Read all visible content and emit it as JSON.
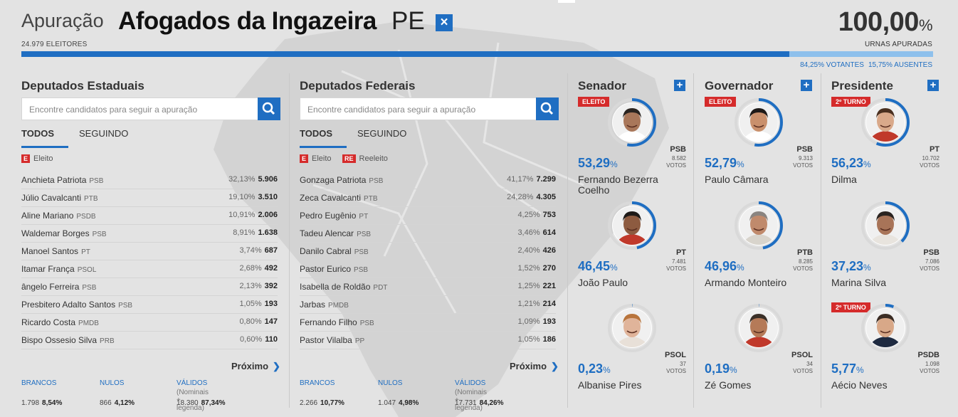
{
  "header": {
    "label": "Apuração",
    "city": "Afogados da Ingazeira",
    "state": "PE",
    "close_icon": "×",
    "eleitores": "24.979 ELEITORES",
    "pct_apurada": "100,00",
    "pct_symbol": "%",
    "urnas_label": "URNAS APURADAS",
    "progress_fraction": 0.8425,
    "votantes": "84,25% VOTANTES",
    "ausentes": "15,75% AUSENTES"
  },
  "colors": {
    "accent": "#1f6ec2",
    "eleito": "#d52b2b",
    "bar_light": "#8ec0ec"
  },
  "estaduais": {
    "title": "Deputados Estaduais",
    "search_placeholder": "Encontre candidatos para seguir a apuração",
    "tab_todos": "TODOS",
    "tab_seguindo": "SEGUINDO",
    "legend_eleito_badge": "E",
    "legend_eleito": "Eleito",
    "rows": [
      {
        "name": "Anchieta Patriota",
        "party": "PSB",
        "pct": "32,13%",
        "votes": "5.906"
      },
      {
        "name": "Júlio Cavalcanti",
        "party": "PTB",
        "pct": "19,10%",
        "votes": "3.510"
      },
      {
        "name": "Aline Mariano",
        "party": "PSDB",
        "pct": "10,91%",
        "votes": "2.006"
      },
      {
        "name": "Waldemar Borges",
        "party": "PSB",
        "pct": "8,91%",
        "votes": "1.638"
      },
      {
        "name": "Manoel Santos",
        "party": "PT",
        "pct": "3,74%",
        "votes": "687"
      },
      {
        "name": "Itamar França",
        "party": "PSOL",
        "pct": "2,68%",
        "votes": "492"
      },
      {
        "name": "ângelo Ferreira",
        "party": "PSB",
        "pct": "2,13%",
        "votes": "392"
      },
      {
        "name": "Presbitero Adalto Santos",
        "party": "PSB",
        "pct": "1,05%",
        "votes": "193"
      },
      {
        "name": "Ricardo Costa",
        "party": "PMDB",
        "pct": "0,80%",
        "votes": "147"
      },
      {
        "name": "Bispo Ossesio Silva",
        "party": "PRB",
        "pct": "0,60%",
        "votes": "110"
      }
    ],
    "proximo": "Próximo",
    "brancos_label": "BRANCOS",
    "brancos_n": "1.798",
    "brancos_pct": "8,54%",
    "nulos_label": "NULOS",
    "nulos_n": "866",
    "nulos_pct": "4,12%",
    "validos_label": "VÁLIDOS",
    "validos_sub": "(Nominais + legenda)",
    "validos_n": "18.380",
    "validos_pct": "87,34%"
  },
  "federais": {
    "title": "Deputados Federais",
    "search_placeholder": "Encontre candidatos para seguir a apuração",
    "tab_todos": "TODOS",
    "tab_seguindo": "SEGUINDO",
    "legend_eleito_badge": "E",
    "legend_eleito": "Eleito",
    "legend_reeleito_badge": "RE",
    "legend_reeleito": "Reeleito",
    "rows": [
      {
        "name": "Gonzaga Patriota",
        "party": "PSB",
        "pct": "41,17%",
        "votes": "7.299"
      },
      {
        "name": "Zeca Cavalcanti",
        "party": "PTB",
        "pct": "24,28%",
        "votes": "4.305"
      },
      {
        "name": "Pedro Eugênio",
        "party": "PT",
        "pct": "4,25%",
        "votes": "753"
      },
      {
        "name": "Tadeu Alencar",
        "party": "PSB",
        "pct": "3,46%",
        "votes": "614"
      },
      {
        "name": "Danilo Cabral",
        "party": "PSB",
        "pct": "2,40%",
        "votes": "426"
      },
      {
        "name": "Pastor Eurico",
        "party": "PSB",
        "pct": "1,52%",
        "votes": "270"
      },
      {
        "name": "Isabella de Roldão",
        "party": "PDT",
        "pct": "1,25%",
        "votes": "221"
      },
      {
        "name": "Jarbas",
        "party": "PMDB",
        "pct": "1,21%",
        "votes": "214"
      },
      {
        "name": "Fernando Filho",
        "party": "PSB",
        "pct": "1,09%",
        "votes": "193"
      },
      {
        "name": "Pastor Vilalba",
        "party": "PP",
        "pct": "1,05%",
        "votes": "186"
      }
    ],
    "proximo": "Próximo",
    "brancos_label": "BRANCOS",
    "brancos_n": "2.266",
    "brancos_pct": "10,77%",
    "nulos_label": "NULOS",
    "nulos_n": "1.047",
    "nulos_pct": "4,98%",
    "validos_label": "VÁLIDOS",
    "validos_sub": "(Nominais + legenda)",
    "validos_n": "17.731",
    "validos_pct": "84,26%"
  },
  "senador": {
    "title": "Senador",
    "plus_icon": "+",
    "candidates": [
      {
        "ribbon": "ELEITO",
        "pct": "53,29",
        "sym": "%",
        "party": "PSB",
        "votes_n": "8.582",
        "votes_label": "VOTOS",
        "name": "Fernando Bezerra Coelho",
        "share": 0.5329,
        "skin": "#a9775a",
        "hair": "#2a2420",
        "shirt": "#ffffff"
      },
      {
        "ribbon": "",
        "pct": "46,45",
        "sym": "%",
        "party": "PT",
        "votes_n": "7.481",
        "votes_label": "VOTOS",
        "name": "João Paulo",
        "share": 0.4645,
        "skin": "#8d5b40",
        "hair": "#1e1a18",
        "shirt": "#c0392b"
      },
      {
        "ribbon": "",
        "pct": "0,23",
        "sym": "%",
        "party": "PSOL",
        "votes_n": "37",
        "votes_label": "VOTOS",
        "name": "Albanise Pires",
        "share": 0.0023,
        "skin": "#e0b49a",
        "hair": "#b8743c",
        "shirt": "#e8e0d8"
      }
    ]
  },
  "governador": {
    "title": "Governador",
    "plus_icon": "+",
    "candidates": [
      {
        "ribbon": "ELEITO",
        "pct": "52,79",
        "sym": "%",
        "party": "PSB",
        "votes_n": "9.313",
        "votes_label": "VOTOS",
        "name": "Paulo Câmara",
        "share": 0.5279,
        "skin": "#c9906c",
        "hair": "#1e1a18",
        "shirt": "#ffffff"
      },
      {
        "ribbon": "",
        "pct": "46,96",
        "sym": "%",
        "party": "PTB",
        "votes_n": "8.285",
        "votes_label": "VOTOS",
        "name": "Armando Monteiro",
        "share": 0.4696,
        "skin": "#c08a6c",
        "hair": "#8a8480",
        "shirt": "#d8d4cc"
      },
      {
        "ribbon": "",
        "pct": "0,19",
        "sym": "%",
        "party": "PSOL",
        "votes_n": "34",
        "votes_label": "VOTOS",
        "name": "Zé Gomes",
        "share": 0.0019,
        "skin": "#b57a58",
        "hair": "#3a3028",
        "shirt": "#c0392b"
      }
    ]
  },
  "presidente": {
    "title": "Presidente",
    "plus_icon": "+",
    "candidates": [
      {
        "ribbon": "2º TURNO",
        "pct": "56,23",
        "sym": "%",
        "party": "PT",
        "votes_n": "10.702",
        "votes_label": "VOTOS",
        "name": "Dilma",
        "share": 0.5623,
        "skin": "#d9a98a",
        "hair": "#4a3020",
        "shirt": "#c0392b"
      },
      {
        "ribbon": "",
        "pct": "37,23",
        "sym": "%",
        "party": "PSB",
        "votes_n": "7.086",
        "votes_label": "VOTOS",
        "name": "Marina Silva",
        "share": 0.3723,
        "skin": "#a87458",
        "hair": "#2a2420",
        "shirt": "#e8e4de"
      },
      {
        "ribbon": "2º TURNO",
        "pct": "5,77",
        "sym": "%",
        "party": "PSDB",
        "votes_n": "1.098",
        "votes_label": "VOTOS",
        "name": "Aécio Neves",
        "share": 0.0577,
        "skin": "#d8a888",
        "hair": "#3a2c24",
        "shirt": "#1e2a40"
      }
    ]
  }
}
